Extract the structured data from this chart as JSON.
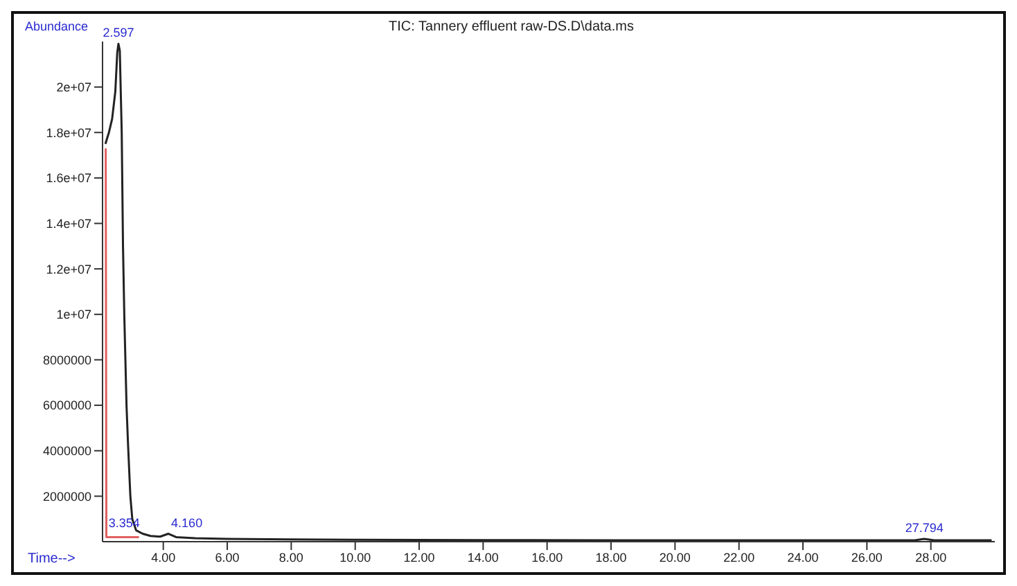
{
  "chart_data": {
    "type": "line",
    "title": "TIC: Tannery effluent raw-DS.D\\data.ms",
    "xlabel": "Time-->",
    "ylabel": "Abundance",
    "xlim": [
      2.1,
      30
    ],
    "xticks": [
      {
        "value": 4,
        "label": "4.00"
      },
      {
        "value": 6,
        "label": "6.00"
      },
      {
        "value": 8,
        "label": "8.00"
      },
      {
        "value": 10,
        "label": "10.00"
      },
      {
        "value": 12,
        "label": "12.00"
      },
      {
        "value": 14,
        "label": "14.00"
      },
      {
        "value": 16,
        "label": "16.00"
      },
      {
        "value": 18,
        "label": "18.00"
      },
      {
        "value": 20,
        "label": "20.00"
      },
      {
        "value": 22,
        "label": "22.00"
      },
      {
        "value": 24,
        "label": "24.00"
      },
      {
        "value": 26,
        "label": "26.00"
      },
      {
        "value": 28,
        "label": "28.00"
      }
    ],
    "ylim": [
      0,
      22000000
    ],
    "yticks": [
      2000000,
      4000000,
      6000000,
      8000000,
      {
        "value": 10000000,
        "label": "1e+07"
      },
      {
        "value": 12000000,
        "label": "1.2e+07"
      },
      {
        "value": 14000000,
        "label": "1.4e+07"
      },
      {
        "value": 16000000,
        "label": "1.6e+07"
      },
      {
        "value": 18000000,
        "label": "1.8e+07"
      },
      {
        "value": 20000000,
        "label": "2e+07"
      }
    ],
    "grid": false,
    "legend": false,
    "marker": "none",
    "line_style": "solid",
    "series": [
      {
        "color": "#222222",
        "x": [
          2.19,
          2.3,
          2.4,
          2.5,
          2.56,
          2.597,
          2.64,
          2.7,
          2.74,
          2.78,
          2.85,
          2.9,
          2.97,
          3.03,
          3.15,
          3.354,
          3.6,
          3.9,
          4.16,
          4.4,
          5,
          6,
          8,
          10,
          14,
          18,
          22,
          26,
          27.5,
          27.794,
          28.1,
          29.9
        ],
        "values": [
          17500000,
          18000000,
          18600000,
          19800000,
          21500000,
          21900000,
          21600000,
          18000000,
          13000000,
          10000000,
          6000000,
          4200000,
          2000000,
          1000000,
          500000,
          350000,
          250000,
          220000,
          350000,
          200000,
          150000,
          120000,
          100000,
          80000,
          70000,
          60000,
          60000,
          60000,
          60000,
          120000,
          60000,
          60000
        ]
      },
      {
        "color": "#e06060",
        "x": [
          2.2,
          2.22,
          2.7,
          3.24
        ],
        "values": [
          17300000,
          200000,
          200000,
          200000
        ]
      }
    ],
    "annotations": [
      {
        "text": "2.597",
        "x": 2.597,
        "y": 21900000
      },
      {
        "text": "3.354",
        "x": 3.354,
        "y": 350000
      },
      {
        "text": "4.160",
        "x": 4.16,
        "y": 350000
      },
      {
        "text": "27.794",
        "x": 27.794,
        "y": 120000
      }
    ]
  }
}
